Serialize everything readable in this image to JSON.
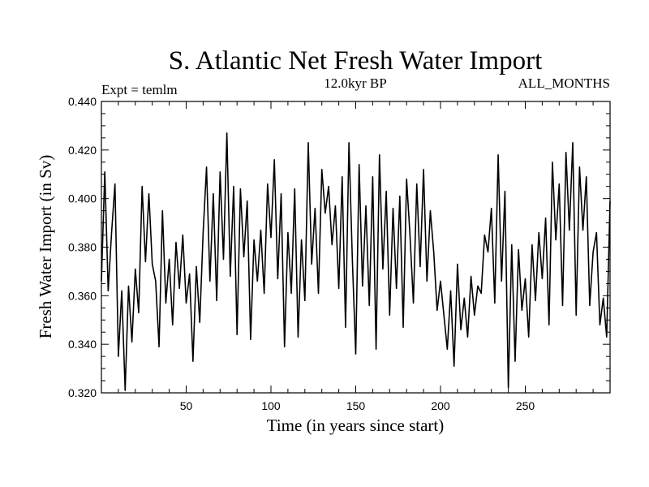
{
  "chart_data": {
    "type": "line",
    "title": "S. Atlantic Net Fresh Water Import",
    "subtitle_left": "Expt = temlm",
    "subtitle_center": "12.0kyr BP",
    "subtitle_right": "ALL_MONTHS",
    "xlabel": "Time (in years since start)",
    "ylabel": "Fresh Water Import (in Sv)",
    "xlim": [
      0,
      300
    ],
    "ylim": [
      0.32,
      0.44
    ],
    "x_ticks": [
      50,
      100,
      150,
      200,
      250
    ],
    "x_tick_labels": [
      "50",
      "100",
      "150",
      "200",
      "250"
    ],
    "y_ticks": [
      0.32,
      0.34,
      0.36,
      0.38,
      0.4,
      0.42,
      0.44
    ],
    "y_tick_labels": [
      "0.320",
      "0.340",
      "0.360",
      "0.380",
      "0.400",
      "0.420",
      "0.440"
    ],
    "line_color": "#000000",
    "series": [
      {
        "name": "Net Fresh Water Import",
        "x": [
          0,
          2,
          4,
          6,
          8,
          10,
          12,
          14,
          16,
          18,
          20,
          22,
          24,
          26,
          28,
          30,
          32,
          34,
          36,
          38,
          40,
          42,
          44,
          46,
          48,
          50,
          52,
          54,
          56,
          58,
          60,
          62,
          64,
          66,
          68,
          70,
          72,
          74,
          76,
          78,
          80,
          82,
          84,
          86,
          88,
          90,
          92,
          94,
          96,
          98,
          100,
          102,
          104,
          106,
          108,
          110,
          112,
          114,
          116,
          118,
          120,
          122,
          124,
          126,
          128,
          130,
          132,
          134,
          136,
          138,
          140,
          142,
          144,
          146,
          148,
          150,
          152,
          154,
          156,
          158,
          160,
          162,
          164,
          166,
          168,
          170,
          172,
          174,
          176,
          178,
          180,
          182,
          184,
          186,
          188,
          190,
          192,
          194,
          196,
          198,
          200,
          202,
          204,
          206,
          208,
          210,
          212,
          214,
          216,
          218,
          220,
          222,
          224,
          226,
          228,
          230,
          232,
          234,
          236,
          238,
          240,
          242,
          244,
          246,
          248,
          250,
          252,
          254,
          256,
          258,
          260,
          262,
          264,
          266,
          268,
          270,
          272,
          274,
          276,
          278,
          280,
          282,
          284,
          286,
          288,
          290,
          292,
          294,
          296,
          298,
          300
        ],
        "values": [
          0.366,
          0.411,
          0.362,
          0.386,
          0.406,
          0.335,
          0.362,
          0.321,
          0.364,
          0.341,
          0.371,
          0.353,
          0.405,
          0.374,
          0.402,
          0.373,
          0.366,
          0.339,
          0.395,
          0.357,
          0.375,
          0.348,
          0.382,
          0.363,
          0.385,
          0.357,
          0.369,
          0.333,
          0.372,
          0.349,
          0.386,
          0.413,
          0.366,
          0.402,
          0.358,
          0.411,
          0.375,
          0.427,
          0.368,
          0.405,
          0.344,
          0.404,
          0.376,
          0.399,
          0.342,
          0.383,
          0.366,
          0.387,
          0.361,
          0.406,
          0.384,
          0.416,
          0.367,
          0.402,
          0.339,
          0.386,
          0.361,
          0.404,
          0.343,
          0.383,
          0.358,
          0.423,
          0.373,
          0.396,
          0.361,
          0.412,
          0.394,
          0.405,
          0.381,
          0.397,
          0.363,
          0.409,
          0.347,
          0.423,
          0.375,
          0.336,
          0.414,
          0.364,
          0.397,
          0.356,
          0.409,
          0.338,
          0.418,
          0.371,
          0.403,
          0.352,
          0.396,
          0.363,
          0.401,
          0.347,
          0.408,
          0.385,
          0.357,
          0.406,
          0.372,
          0.412,
          0.366,
          0.395,
          0.378,
          0.354,
          0.366,
          0.352,
          0.338,
          0.362,
          0.331,
          0.373,
          0.346,
          0.359,
          0.343,
          0.368,
          0.352,
          0.364,
          0.361,
          0.385,
          0.378,
          0.396,
          0.357,
          0.418,
          0.366,
          0.403,
          0.322,
          0.381,
          0.333,
          0.379,
          0.354,
          0.367,
          0.343,
          0.381,
          0.358,
          0.386,
          0.367,
          0.392,
          0.348,
          0.415,
          0.383,
          0.406,
          0.356,
          0.419,
          0.387,
          0.423,
          0.352,
          0.413,
          0.387,
          0.409,
          0.356,
          0.378,
          0.386,
          0.348,
          0.359,
          0.343,
          0.399
        ]
      }
    ]
  }
}
